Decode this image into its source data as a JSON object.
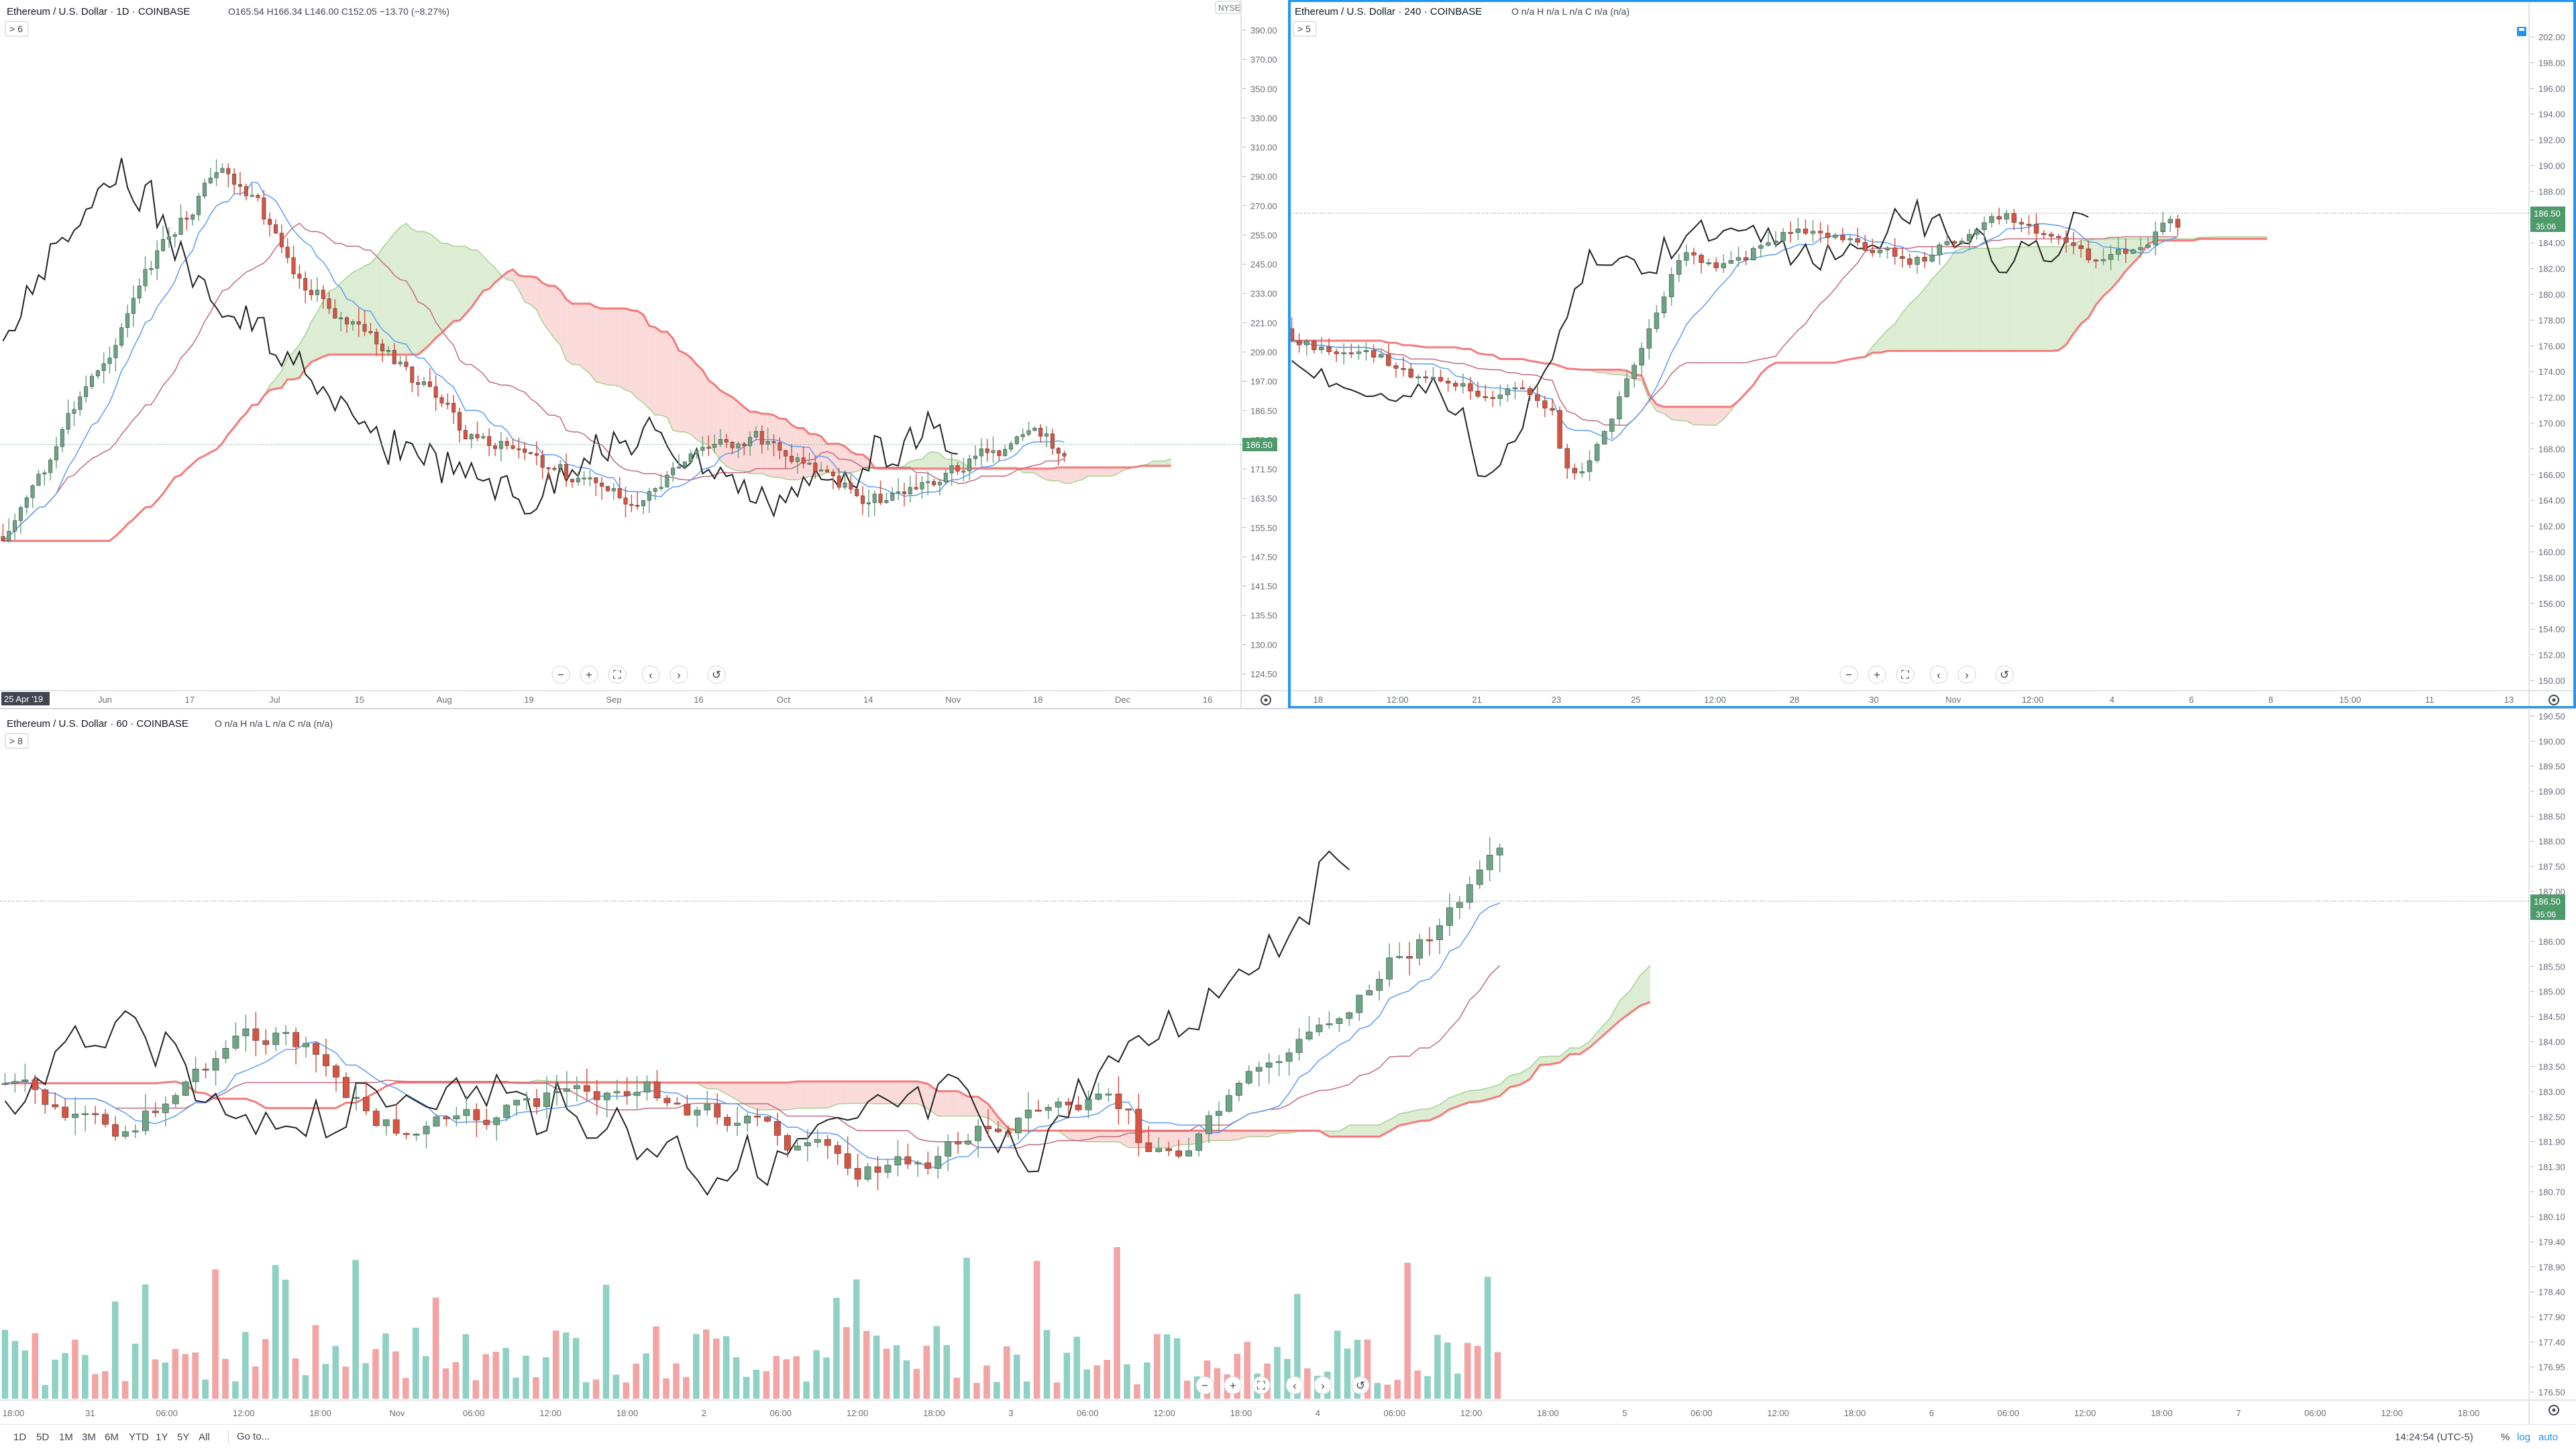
{
  "layout_windows": {
    "daily": {
      "title": "Ethereum / U.S. Dollar · 1D · COINBASE",
      "ohlc": "O165.54 H166.34 L146.00 C152.05 −13.70 (−8.27%)",
      "collapse_badge": "> 6",
      "right_badge": "NYSE",
      "start_date_badge": "25 Apr '19"
    },
    "h4": {
      "title": "Ethereum / U.S. Dollar · 240 · COINBASE",
      "ohlc": "O n/a H n/a L n/a C n/a (n/a)",
      "collapse_badge": "> 5"
    },
    "h1": {
      "title": "Ethereum / U.S. Dollar · 60 · COINBASE",
      "ohlc": "O n/a H n/a L n/a C n/a (n/a)",
      "collapse_badge": "> 8"
    }
  },
  "timeframes": [
    "1D",
    "5D",
    "1M",
    "3M",
    "6M",
    "YTD",
    "1Y",
    "5Y",
    "All"
  ],
  "goto_label": "Go to...",
  "clock": "14:24:54 (UTC-5)",
  "scale_buttons": {
    "percent": "%",
    "log": "log",
    "auto": "auto"
  },
  "colors": {
    "up": "#6ba583",
    "down": "#d75442",
    "kijun": "#f05350",
    "tenkan": "#5b9cf6",
    "chikou": "#222222",
    "cloud_green": "#dcedd3",
    "cloud_red": "#fbdada",
    "span_a": "#85c46e",
    "span_b": "#f57a7a",
    "price_tag": "#4f9a6b",
    "timer_tag": "#4f9a6b",
    "active_border": "#2196f3"
  },
  "chart_data": [
    {
      "id": "daily",
      "type": "candlestick",
      "title": "Ethereum / U.S. Dollar · 1D · COINBASE",
      "y_ticks": [
        "124.50",
        "130.00",
        "135.50",
        "141.50",
        "147.50",
        "155.50",
        "163.50",
        "171.50",
        "179.50",
        "186.50",
        "197.00",
        "209.00",
        "221.00",
        "233.00",
        "245.00",
        "255.00",
        "270.00",
        "290.00",
        "310.00",
        "330.00",
        "350.00",
        "370.00",
        "390.00"
      ],
      "x_ticks": [
        "13",
        "Jun",
        "17",
        "Jul",
        "15",
        "Aug",
        "19",
        "Sep",
        "16",
        "Oct",
        "14",
        "Nov",
        "18",
        "Dec",
        "16"
      ],
      "last_price": "186.50",
      "ylim": [
        124.5,
        390
      ],
      "ylog": true,
      "cloud": true,
      "ichimoku": true
    },
    {
      "id": "h4",
      "type": "candlestick",
      "title": "Ethereum / U.S. Dollar · 240 · COINBASE",
      "y_ticks": [
        "150.00",
        "152.00",
        "154.00",
        "156.00",
        "158.00",
        "160.00",
        "162.00",
        "164.00",
        "166.00",
        "168.00",
        "170.00",
        "172.00",
        "174.00",
        "176.00",
        "178.00",
        "180.00",
        "182.00",
        "184.00",
        "186.00",
        "188.00",
        "190.00",
        "192.00",
        "194.00",
        "196.00",
        "198.00",
        "202.00"
      ],
      "x_ticks": [
        "18",
        "12:00",
        "21",
        "23",
        "25",
        "12:00",
        "28",
        "30",
        "Nov",
        "12:00",
        "4",
        "6",
        "8",
        "15:00",
        "11",
        "13"
      ],
      "last_price": "186.50",
      "countdown": "35:06",
      "ylim": [
        150,
        202
      ],
      "cloud": true,
      "ichimoku": true
    },
    {
      "id": "h1",
      "type": "candlestick",
      "title": "Ethereum / U.S. Dollar · 60 · COINBASE",
      "y_ticks": [
        "176.50",
        "176.95",
        "177.40",
        "177.90",
        "178.40",
        "178.90",
        "179.40",
        "180.10",
        "180.70",
        "181.30",
        "181.90",
        "182.50",
        "183.00",
        "183.50",
        "184.00",
        "184.50",
        "185.00",
        "185.50",
        "186.00",
        "186.50",
        "187.00",
        "187.50",
        "188.00",
        "188.50",
        "189.00",
        "189.50",
        "190.00",
        "190.50"
      ],
      "x_ticks": [
        "18:00",
        "31",
        "06:00",
        "12:00",
        "18:00",
        "Nov",
        "06:00",
        "12:00",
        "18:00",
        "2",
        "06:00",
        "12:00",
        "18:00",
        "3",
        "06:00",
        "12:00",
        "18:00",
        "4",
        "06:00",
        "12:00",
        "18:00",
        "5",
        "06:00",
        "12:00",
        "18:00",
        "6",
        "06:00",
        "12:00",
        "18:00",
        "7",
        "06:00",
        "12:00",
        "18:00"
      ],
      "last_price": "186.50",
      "countdown": "35:06",
      "ylim": [
        176.5,
        190.5
      ],
      "cloud": true,
      "ichimoku": true,
      "volume": true
    }
  ]
}
